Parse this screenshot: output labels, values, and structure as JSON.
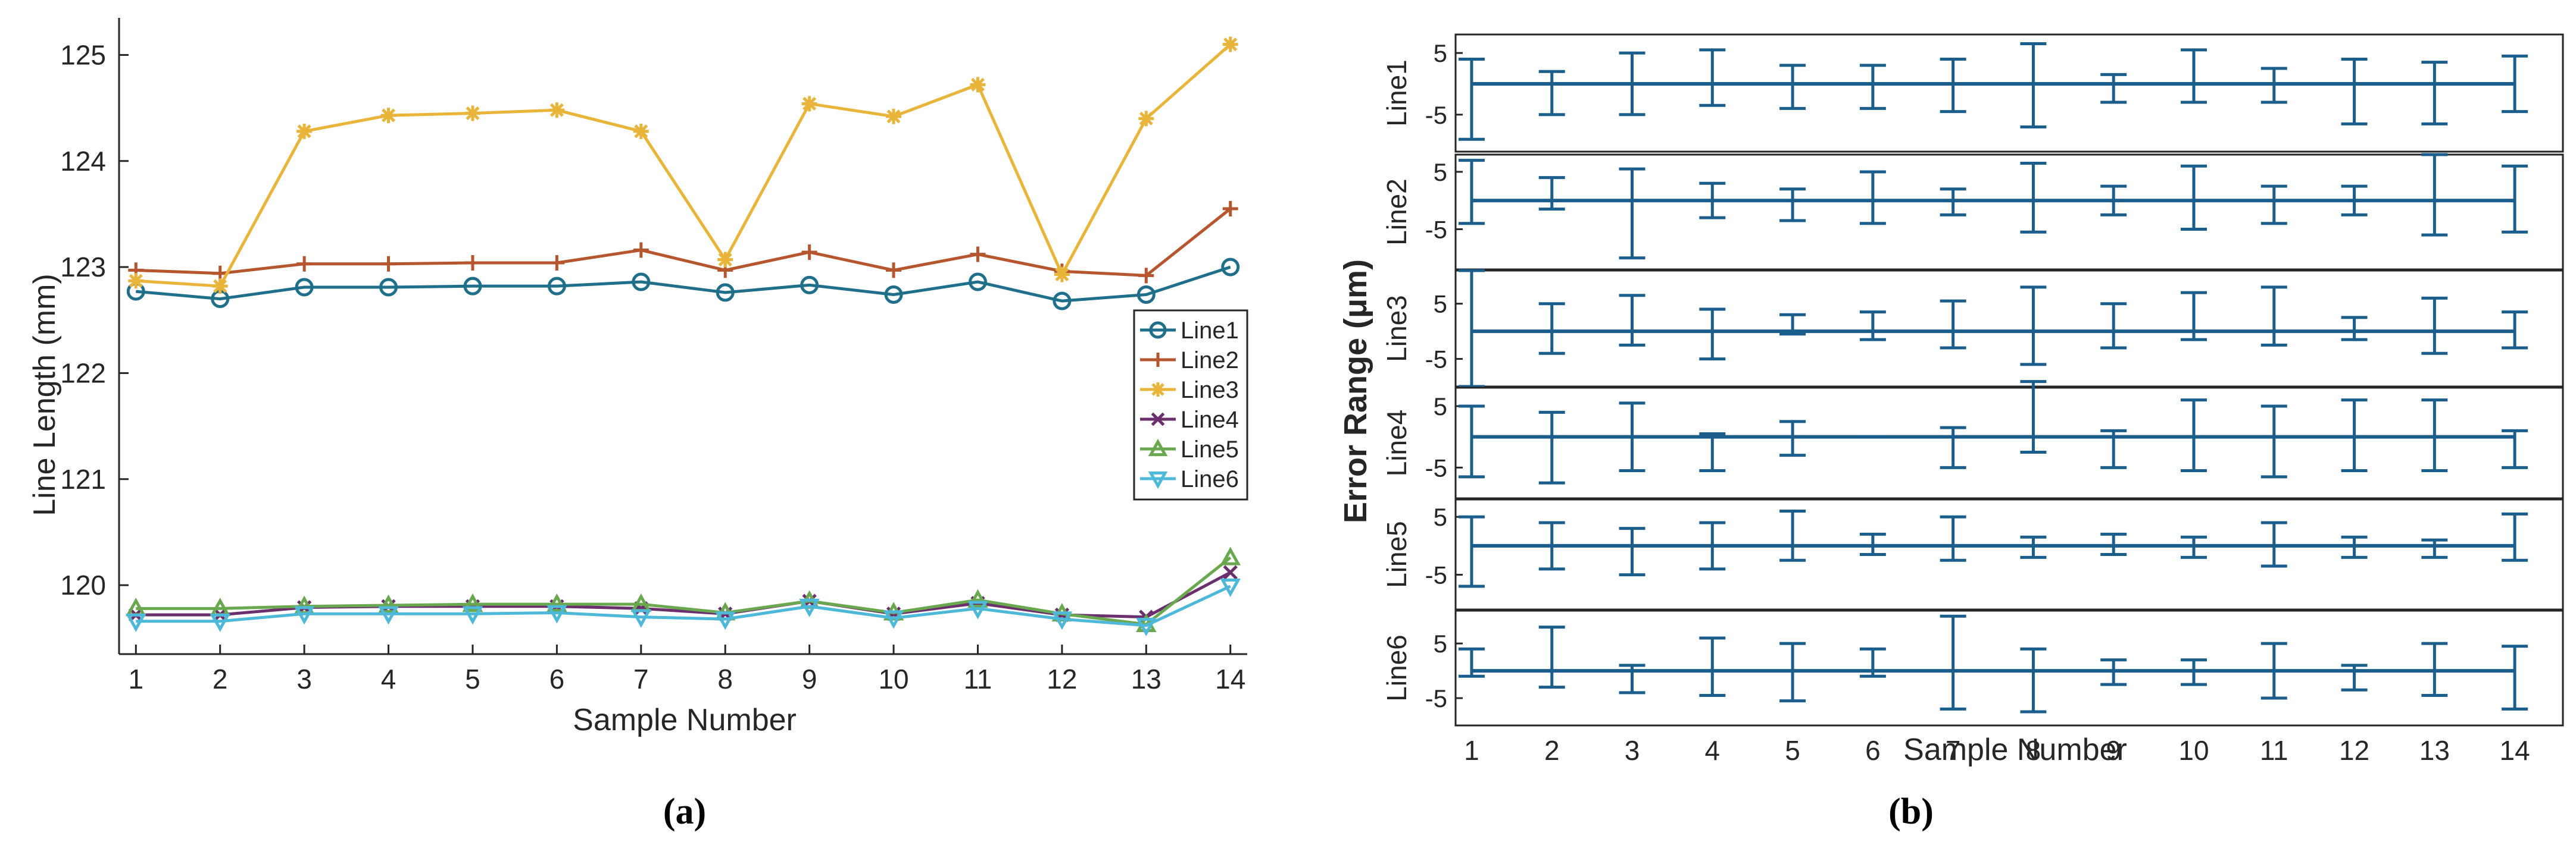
{
  "chart_data": [
    {
      "type": "line",
      "panel_label": "(a)",
      "title": "",
      "xlabel": "Sample Number",
      "ylabel": "Line Length (mm)",
      "x": [
        1,
        2,
        3,
        4,
        5,
        6,
        7,
        8,
        9,
        10,
        11,
        12,
        13,
        14
      ],
      "xlim": [
        0.8,
        14.2
      ],
      "ylim": [
        119.35,
        125.35
      ],
      "y_ticks": [
        120,
        121,
        122,
        123,
        124,
        125
      ],
      "legend_position": "right",
      "series": [
        {
          "name": "Line1",
          "marker": "circle",
          "color": "#1f6f8b",
          "values": [
            122.77,
            122.7,
            122.81,
            122.81,
            122.82,
            122.82,
            122.86,
            122.76,
            122.83,
            122.74,
            122.86,
            122.68,
            122.74,
            123.0
          ]
        },
        {
          "name": "Line2",
          "marker": "plus",
          "color": "#b5562f",
          "values": [
            122.97,
            122.94,
            123.03,
            123.03,
            123.04,
            123.04,
            123.16,
            122.97,
            123.14,
            122.97,
            123.12,
            122.96,
            122.92,
            123.55
          ]
        },
        {
          "name": "Line3",
          "marker": "star",
          "color": "#e8b53a",
          "values": [
            122.87,
            122.82,
            124.28,
            124.43,
            124.45,
            124.48,
            124.28,
            123.07,
            124.54,
            124.42,
            124.72,
            122.93,
            124.4,
            125.1
          ]
        },
        {
          "name": "Line4",
          "marker": "x",
          "color": "#6b2f6e",
          "values": [
            119.72,
            119.72,
            119.79,
            119.8,
            119.8,
            119.8,
            119.78,
            119.73,
            119.85,
            119.73,
            119.83,
            119.72,
            119.7,
            120.12
          ]
        },
        {
          "name": "Line5",
          "marker": "triangle-up",
          "color": "#6aa84f",
          "values": [
            119.78,
            119.78,
            119.8,
            119.81,
            119.82,
            119.82,
            119.82,
            119.74,
            119.85,
            119.74,
            119.86,
            119.73,
            119.63,
            120.26
          ]
        },
        {
          "name": "Line6",
          "marker": "triangle-down",
          "color": "#4db8d8",
          "values": [
            119.66,
            119.66,
            119.73,
            119.73,
            119.73,
            119.74,
            119.7,
            119.68,
            119.8,
            119.69,
            119.78,
            119.68,
            119.62,
            119.99
          ]
        }
      ]
    },
    {
      "type": "errorbar",
      "panel_label": "(b)",
      "title": "",
      "xlabel": "Sample Number",
      "ylabel": "Error Range (μm)",
      "x": [
        1,
        2,
        3,
        4,
        5,
        6,
        7,
        8,
        9,
        10,
        11,
        12,
        13,
        14
      ],
      "xlim": [
        0.8,
        14.6
      ],
      "color": "#1b5e8c",
      "subplots": [
        {
          "name": "Line1",
          "ylim": [
            -11,
            8
          ],
          "y_ticks": [
            5,
            -5
          ],
          "upper": [
            4,
            2,
            5,
            5.5,
            3,
            3,
            4,
            6.5,
            1.5,
            5.5,
            2.5,
            4,
            3.5,
            4.5
          ],
          "lower": [
            -9,
            -5,
            -5,
            -3.5,
            -4,
            -4,
            -4.5,
            -7,
            -3,
            -3,
            -3,
            -6.5,
            -6.5,
            -4.5
          ]
        },
        {
          "name": "Line2",
          "ylim": [
            -12,
            8
          ],
          "y_ticks": [
            5,
            -5
          ],
          "upper": [
            7,
            4,
            5.5,
            3,
            2,
            5,
            2,
            6.5,
            2.5,
            6,
            2.5,
            2.5,
            8,
            6
          ],
          "lower": [
            -4,
            -1.5,
            -10,
            -3,
            -3.5,
            -4,
            -2.5,
            -5.5,
            -2.5,
            -5,
            -4,
            -2.5,
            -6,
            -5.5
          ]
        },
        {
          "name": "Line3",
          "ylim": [
            -10,
            11
          ],
          "y_ticks": [
            5,
            -5
          ],
          "upper": [
            11,
            5,
            6.5,
            4,
            3,
            3.5,
            5.5,
            8,
            5,
            7,
            8,
            2.5,
            6,
            3.5
          ],
          "lower": [
            -10,
            -4,
            -2.5,
            -5,
            -0.5,
            -1.5,
            -3,
            -6,
            -3,
            -1.5,
            -2.5,
            -1.5,
            -4,
            -3
          ]
        },
        {
          "name": "Line4",
          "ylim": [
            -10,
            8
          ],
          "y_ticks": [
            5,
            -5
          ],
          "upper": [
            5,
            4,
            5.5,
            0.5,
            2.5,
            0,
            1.5,
            9,
            1,
            6,
            5,
            6,
            6,
            1
          ],
          "lower": [
            -6.5,
            -7.5,
            -5.5,
            -5.5,
            -3,
            0,
            -5,
            -2.5,
            -5,
            -5.5,
            -6.5,
            -5.5,
            -5.5,
            -5
          ]
        },
        {
          "name": "Line5",
          "ylim": [
            -11,
            8
          ],
          "y_ticks": [
            5,
            -5
          ],
          "upper": [
            5,
            4,
            3,
            4,
            6,
            2,
            5,
            1.5,
            2,
            1.5,
            4,
            1.5,
            1,
            5.5
          ],
          "lower": [
            -7,
            -4,
            -5,
            -4,
            -2.5,
            -1.5,
            -2.5,
            -2,
            -1.5,
            -2,
            -3.5,
            -2,
            -2,
            -2.5
          ]
        },
        {
          "name": "Line6",
          "ylim": [
            -10,
            11
          ],
          "y_ticks": [
            5,
            -5
          ],
          "upper": [
            4,
            8,
            1,
            6,
            5,
            4,
            10,
            4,
            2,
            2,
            5,
            1,
            5,
            4.5
          ],
          "lower": [
            -1,
            -3,
            -4,
            -4.5,
            -5.5,
            -1,
            -7,
            -7.5,
            -2.5,
            -2.5,
            -5,
            -3.5,
            -4.5,
            -7
          ]
        }
      ]
    }
  ]
}
